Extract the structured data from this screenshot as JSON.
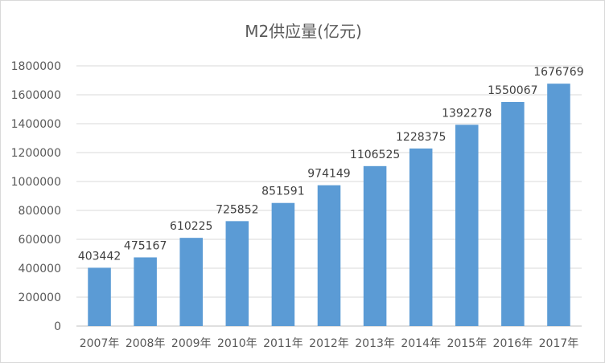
{
  "chart_data": {
    "type": "bar",
    "title": "M2供应量(亿元)",
    "categories": [
      "2007年",
      "2008年",
      "2009年",
      "2010年",
      "2011年",
      "2012年",
      "2013年",
      "2014年",
      "2015年",
      "2016年",
      "2017年"
    ],
    "values": [
      403442,
      475167,
      610225,
      725852,
      851591,
      974149,
      1106525,
      1228375,
      1392278,
      1550067,
      1676769
    ],
    "data_labels": [
      "403442",
      "475167",
      "610225",
      "725852",
      "851591",
      "974149",
      "1106525",
      "1228375",
      "1392278",
      "1550067",
      "1676769"
    ],
    "y_ticks": [
      "0",
      "200000",
      "400000",
      "600000",
      "800000",
      "1000000",
      "1200000",
      "1400000",
      "1600000",
      "1800000"
    ],
    "ylim": [
      0,
      1800000
    ],
    "xlabel": "",
    "ylabel": "",
    "grid": true,
    "legend": "none",
    "bar_color": "#5b9bd5"
  }
}
